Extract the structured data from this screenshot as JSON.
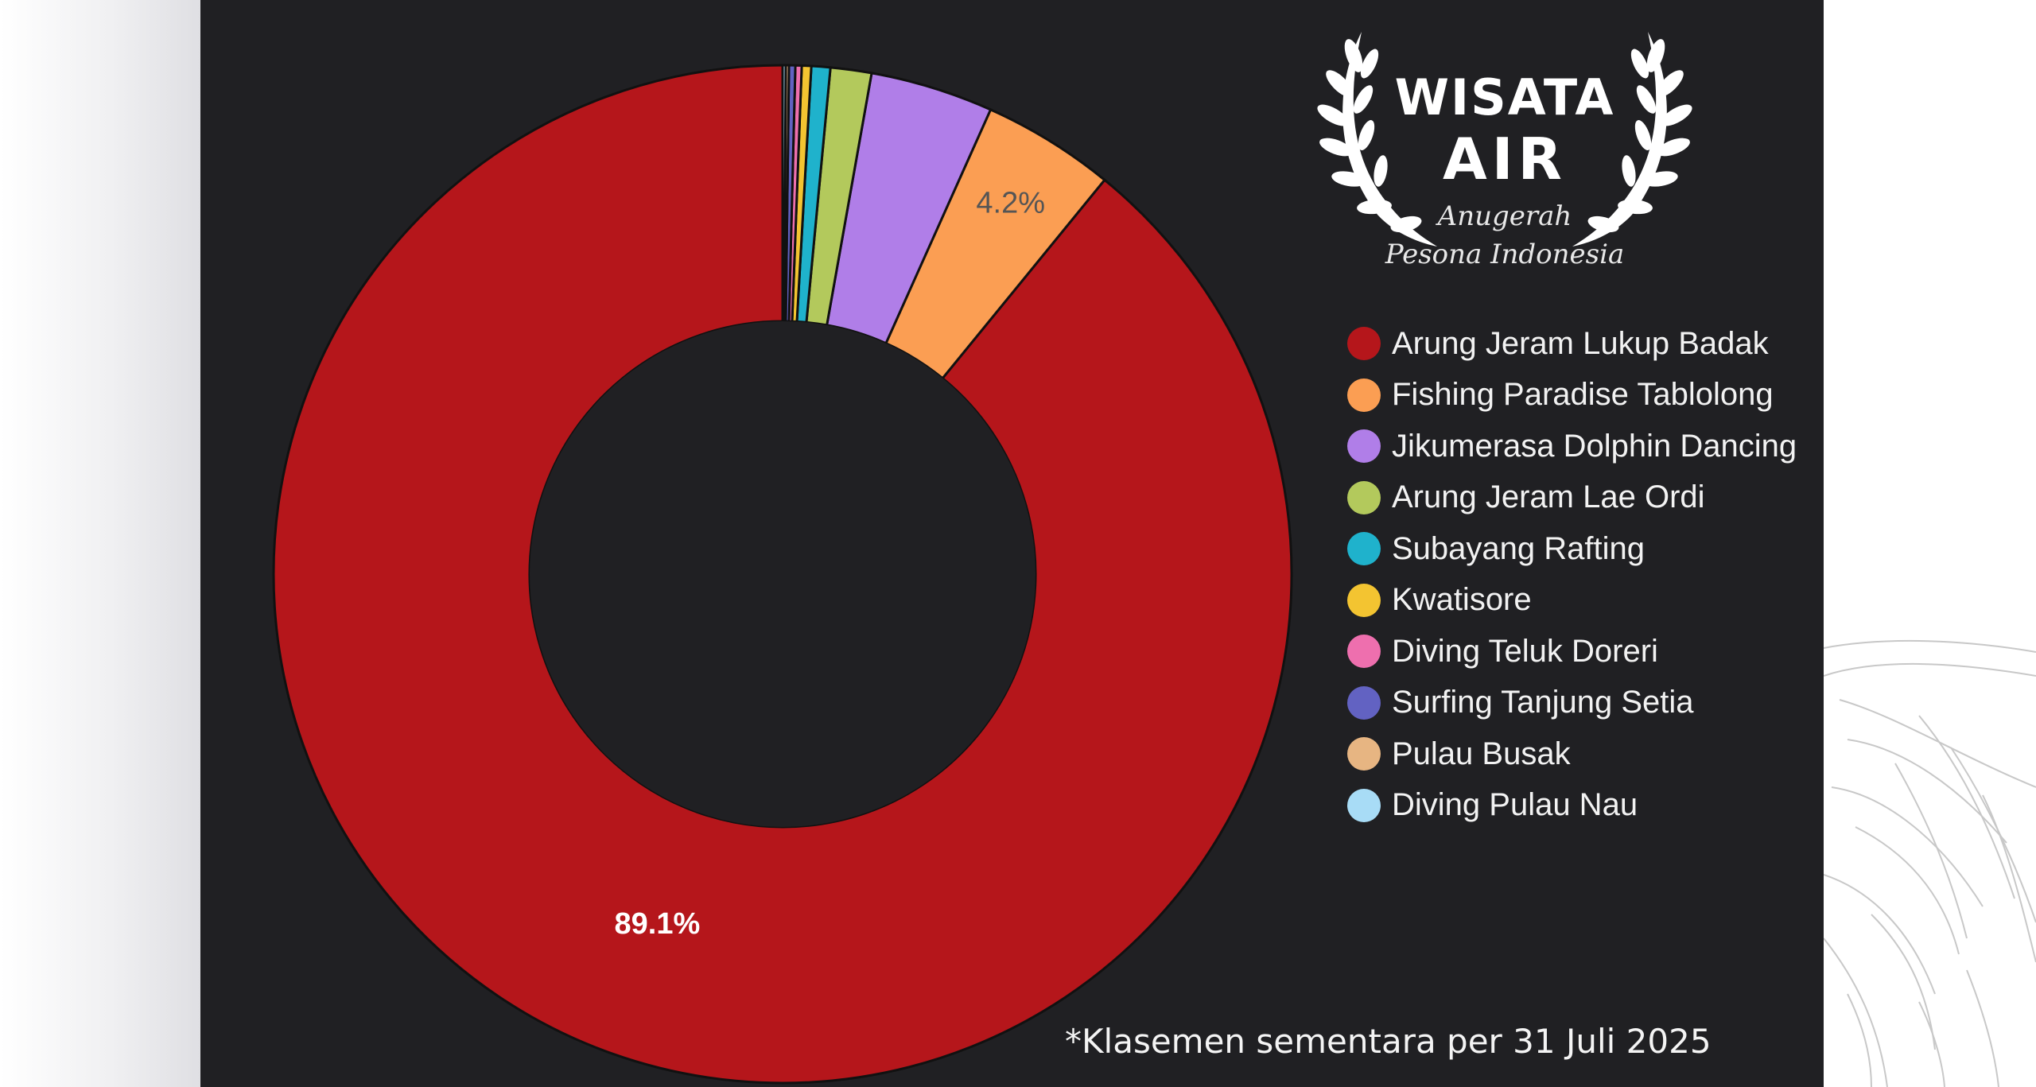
{
  "chart_data": {
    "type": "pie",
    "hole": "donut",
    "legend_position": "right",
    "slices": [
      {
        "label": "Arung Jeram Lukup Badak",
        "value": 89.1,
        "color": "#b5161b",
        "data_label": "89.1%"
      },
      {
        "label": "Fishing Paradise Tablolong",
        "value": 4.2,
        "color": "#fb9e53",
        "data_label": "4.2%"
      },
      {
        "label": "Jikumerasa Dolphin Dancing",
        "value": 3.9,
        "color": "#b07ee8",
        "data_label": ""
      },
      {
        "label": "Arung Jeram Lae Ordi",
        "value": 1.3,
        "color": "#b3c95c",
        "data_label": ""
      },
      {
        "label": "Subayang Rafting",
        "value": 0.6,
        "color": "#1fb2cc",
        "data_label": ""
      },
      {
        "label": "Kwatisore",
        "value": 0.3,
        "color": "#f3c431",
        "data_label": ""
      },
      {
        "label": "Diving Teluk Doreri",
        "value": 0.2,
        "color": "#ee6fae",
        "data_label": ""
      },
      {
        "label": "Surfing Tanjung Setia",
        "value": 0.2,
        "color": "#6262c2",
        "data_label": ""
      },
      {
        "label": "Pulau Busak",
        "value": 0.1,
        "color": "#e7b582",
        "data_label": ""
      },
      {
        "label": "Diving Pulau Nau",
        "value": 0.1,
        "color": "#a8dcf6",
        "data_label": ""
      }
    ]
  },
  "logo": {
    "line1": "WISATA",
    "line2": "AIR",
    "sub1": "Anugerah",
    "sub2": "Pesona Indonesia"
  },
  "footnote": "*Klasemen sementara per 31 Juli 2025",
  "colors": {
    "panel_background": "#202023",
    "page_background": "#ebebee",
    "slice_border": "#111111",
    "label_on_dark": "#ffffff",
    "label_on_light": "#555555"
  }
}
